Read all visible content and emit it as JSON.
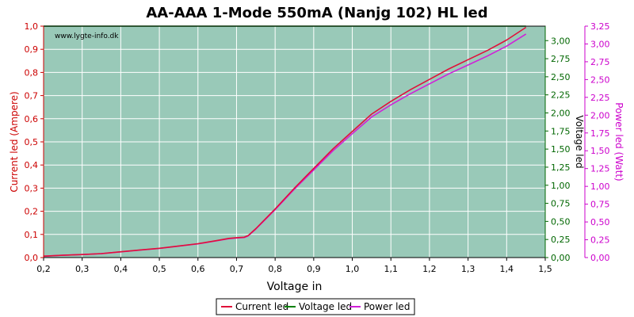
{
  "chart_data": {
    "type": "line",
    "title": "AA-AAA 1-Mode 550mA (Nanjg 102) HL led",
    "watermark": "www.lygte-info.dk",
    "xlabel": "Voltage in",
    "ylabel_left": "Current led (Ampere)",
    "ylabel_right1": "Voltage led",
    "ylabel_right2": "Power led (Watt)",
    "xlim": [
      0.2,
      1.5
    ],
    "ylim_left": [
      0,
      1.0
    ],
    "ylim_right1": [
      0,
      3.2
    ],
    "ylim_right2": [
      0,
      3.25
    ],
    "x_ticks": [
      "0,2",
      "0,3",
      "0,4",
      "0,5",
      "0,6",
      "0,7",
      "0,8",
      "0,9",
      "1,0",
      "1,1",
      "1,2",
      "1,3",
      "1,4",
      "1,5"
    ],
    "y_left_ticks": [
      "0,0",
      "0,1",
      "0,2",
      "0,3",
      "0,4",
      "0,5",
      "0,6",
      "0,7",
      "0,8",
      "0,9",
      "1,0"
    ],
    "y_right1_ticks": [
      "0,00",
      "0,25",
      "0,50",
      "0,75",
      "1,00",
      "1,25",
      "1,50",
      "1,75",
      "2,00",
      "2,25",
      "2,50",
      "2,75",
      "3,00"
    ],
    "y_right2_ticks": [
      "0,00",
      "0,25",
      "0,50",
      "0,75",
      "1,00",
      "1,25",
      "1,50",
      "1,75",
      "2,00",
      "2,25",
      "2,50",
      "2,75",
      "3,00",
      "3,25"
    ],
    "grid": true,
    "legend_position": "bottom-center",
    "colors": {
      "plot_bg": "#99c9b8",
      "grid": "#ffffff",
      "current": "#e0103a",
      "voltage": "#008000",
      "power": "#d020d8",
      "left_axis": "#cc0000",
      "right1_axis": "#006600",
      "right2_axis": "#cc00cc"
    },
    "series": [
      {
        "name": "Current led",
        "axis": "left",
        "x": [
          0.2,
          0.25,
          0.3,
          0.35,
          0.4,
          0.45,
          0.5,
          0.55,
          0.6,
          0.65,
          0.68,
          0.7,
          0.72,
          0.73,
          0.75,
          0.8,
          0.85,
          0.9,
          0.95,
          1.0,
          1.05,
          1.1,
          1.15,
          1.2,
          1.25,
          1.3,
          1.35,
          1.4,
          1.45
        ],
        "values": [
          0.006,
          0.01,
          0.013,
          0.017,
          0.025,
          0.033,
          0.04,
          0.05,
          0.06,
          0.074,
          0.083,
          0.086,
          0.088,
          0.095,
          0.125,
          0.21,
          0.3,
          0.385,
          0.47,
          0.545,
          0.62,
          0.675,
          0.725,
          0.77,
          0.815,
          0.855,
          0.895,
          0.94,
          0.995
        ]
      },
      {
        "name": "Voltage led",
        "axis": "right1",
        "x": [
          0.2,
          1.45
        ],
        "values": [
          3.2,
          3.2
        ]
      },
      {
        "name": "Power led",
        "axis": "right2",
        "x": [
          0.2,
          0.25,
          0.3,
          0.35,
          0.4,
          0.45,
          0.5,
          0.55,
          0.6,
          0.65,
          0.68,
          0.7,
          0.72,
          0.73,
          0.75,
          0.8,
          0.85,
          0.9,
          0.95,
          1.0,
          1.05,
          1.1,
          1.15,
          1.2,
          1.25,
          1.3,
          1.35,
          1.4,
          1.45
        ],
        "values": [
          0.019,
          0.032,
          0.042,
          0.054,
          0.08,
          0.105,
          0.128,
          0.16,
          0.192,
          0.237,
          0.265,
          0.275,
          0.282,
          0.304,
          0.4,
          0.672,
          0.96,
          1.23,
          1.5,
          1.74,
          1.975,
          2.145,
          2.3,
          2.44,
          2.58,
          2.705,
          2.83,
          2.97,
          3.14
        ]
      }
    ]
  }
}
